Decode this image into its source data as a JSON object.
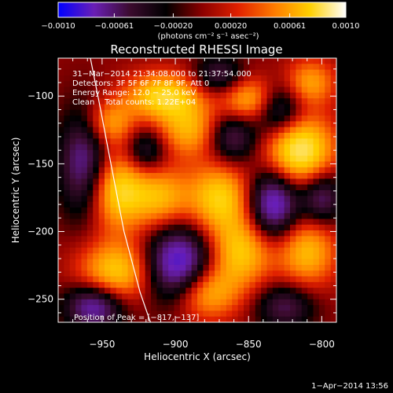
{
  "chart_data": {
    "type": "heatmap",
    "title": "Reconstructed RHESSI Image",
    "xlabel": "Heliocentric X (arcsec)",
    "ylabel": "Heliocentric Y (arcsec)",
    "xlim": [
      -980,
      -790
    ],
    "ylim": [
      -267,
      -72
    ],
    "x_ticks": [
      -950,
      -900,
      -850,
      -800
    ],
    "x_tick_labels": [
      "−950",
      "−900",
      "−850",
      "−800"
    ],
    "y_ticks": [
      -100,
      -150,
      -200,
      -250
    ],
    "y_tick_labels": [
      "−100",
      "−150",
      "−200",
      "−250"
    ],
    "colorbar": {
      "range": [
        -0.001,
        0.001
      ],
      "ticks": [
        -0.001,
        -0.00061,
        -0.0002,
        0.0002,
        0.00061,
        0.001
      ],
      "tick_labels": [
        "−0.0010",
        "−0.00061",
        "−0.00020",
        "0.00020",
        "0.00061",
        "0.0010"
      ],
      "unit_label": "(photons cm⁻² s⁻¹ asec⁻²)",
      "colors": [
        "#0000ff",
        "#6a1fb5",
        "#3b0b2e",
        "#000000",
        "#8b0000",
        "#e02000",
        "#ff7a00",
        "#ffd000",
        "#ffffff"
      ]
    },
    "annotations": [
      "31−Mar−2014 21:34:08.000 to 21:37:54.000",
      "Detectors: 3F 5F 6F 7F 8F 9F, Att 0",
      "Energy Range: 12.0 − 25.0 keV",
      "Clean    Total counts: 1.22E+04"
    ],
    "peak_label": "Position of Peak = [−817,−137]",
    "limb_curve": [
      [
        -958,
        -72
      ],
      [
        -951,
        -110
      ],
      [
        -944,
        -150
      ],
      [
        -935,
        -200
      ],
      [
        -924,
        -245
      ],
      [
        -917,
        -267
      ]
    ],
    "features": [
      {
        "x": -815,
        "y": -140,
        "v": 1.0,
        "sx": 16,
        "sy": 18
      },
      {
        "x": -908,
        "y": -100,
        "v": 0.8,
        "sx": 18,
        "sy": 12
      },
      {
        "x": -848,
        "y": -103,
        "v": 0.7,
        "sx": 14,
        "sy": 12
      },
      {
        "x": -890,
        "y": -125,
        "v": 0.6,
        "sx": 16,
        "sy": 14
      },
      {
        "x": -940,
        "y": -170,
        "v": 0.8,
        "sx": 14,
        "sy": 20
      },
      {
        "x": -910,
        "y": -175,
        "v": 0.6,
        "sx": 14,
        "sy": 16
      },
      {
        "x": -870,
        "y": -175,
        "v": 0.75,
        "sx": 15,
        "sy": 18
      },
      {
        "x": -855,
        "y": -215,
        "v": 0.7,
        "sx": 15,
        "sy": 18
      },
      {
        "x": -940,
        "y": -230,
        "v": 0.75,
        "sx": 18,
        "sy": 16
      },
      {
        "x": -880,
        "y": -245,
        "v": 0.7,
        "sx": 16,
        "sy": 14
      },
      {
        "x": -810,
        "y": -215,
        "v": 0.65,
        "sx": 14,
        "sy": 18
      },
      {
        "x": -945,
        "y": -120,
        "v": 0.55,
        "sx": 12,
        "sy": 12
      },
      {
        "x": -808,
        "y": -90,
        "v": 0.55,
        "sx": 12,
        "sy": 12
      },
      {
        "x": -898,
        "y": -225,
        "v": -1.0,
        "sx": 16,
        "sy": 20
      },
      {
        "x": -833,
        "y": -180,
        "v": -0.9,
        "sx": 12,
        "sy": 18
      },
      {
        "x": -962,
        "y": -150,
        "v": -0.7,
        "sx": 12,
        "sy": 28
      },
      {
        "x": -955,
        "y": -255,
        "v": -0.8,
        "sx": 14,
        "sy": 12
      },
      {
        "x": -862,
        "y": -130,
        "v": -0.6,
        "sx": 12,
        "sy": 14
      },
      {
        "x": -830,
        "y": -110,
        "v": -0.7,
        "sx": 12,
        "sy": 14
      },
      {
        "x": -920,
        "y": -140,
        "v": -0.5,
        "sx": 10,
        "sy": 12
      },
      {
        "x": -800,
        "y": -175,
        "v": -0.6,
        "sx": 10,
        "sy": 14
      },
      {
        "x": -825,
        "y": -255,
        "v": -0.5,
        "sx": 14,
        "sy": 12
      },
      {
        "x": -870,
        "y": -85,
        "v": -0.5,
        "sx": 12,
        "sy": 10
      }
    ]
  },
  "footer": {
    "timestamp": "1−Apr−2014 13:56"
  }
}
